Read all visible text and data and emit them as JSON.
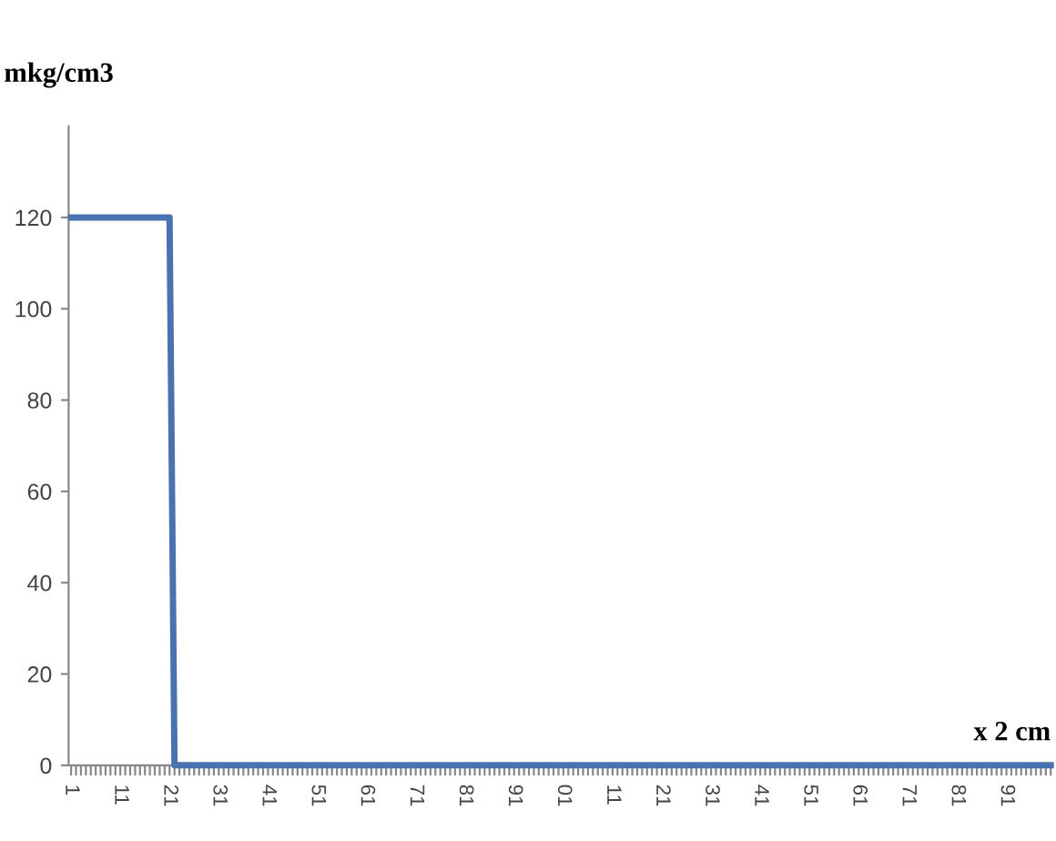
{
  "chart_data": {
    "type": "line",
    "ylabel": "mkg/cm3",
    "xlabel": "x 2 cm",
    "categories": [
      "1",
      null,
      null,
      null,
      null,
      null,
      null,
      null,
      null,
      null,
      "11",
      null,
      null,
      null,
      null,
      null,
      null,
      null,
      null,
      null,
      "21",
      null,
      null,
      null,
      null,
      null,
      null,
      null,
      null,
      null,
      "31",
      null,
      null,
      null,
      null,
      null,
      null,
      null,
      null,
      null,
      "41",
      null,
      null,
      null,
      null,
      null,
      null,
      null,
      null,
      null,
      "51",
      null,
      null,
      null,
      null,
      null,
      null,
      null,
      null,
      null,
      "61",
      null,
      null,
      null,
      null,
      null,
      null,
      null,
      null,
      null,
      "71",
      null,
      null,
      null,
      null,
      null,
      null,
      null,
      null,
      null,
      "81",
      null,
      null,
      null,
      null,
      null,
      null,
      null,
      null,
      null,
      "91",
      null,
      null,
      null,
      null,
      null,
      null,
      null,
      null,
      null,
      "01",
      null,
      null,
      null,
      null,
      null,
      null,
      null,
      null,
      null,
      "11",
      null,
      null,
      null,
      null,
      null,
      null,
      null,
      null,
      null,
      "21",
      null,
      null,
      null,
      null,
      null,
      null,
      null,
      null,
      null,
      "31",
      null,
      null,
      null,
      null,
      null,
      null,
      null,
      null,
      null,
      "41",
      null,
      null,
      null,
      null,
      null,
      null,
      null,
      null,
      null,
      "51",
      null,
      null,
      null,
      null,
      null,
      null,
      null,
      null,
      null,
      "61",
      null,
      null,
      null,
      null,
      null,
      null,
      null,
      null,
      null,
      "71",
      null,
      null,
      null,
      null,
      null,
      null,
      null,
      null,
      null,
      "81",
      null,
      null,
      null,
      null,
      null,
      null,
      null,
      null,
      null,
      "91",
      null,
      null,
      null,
      null,
      null,
      null,
      null,
      null,
      null
    ],
    "series": [
      {
        "color": "#4a72b0",
        "values": [
          120,
          120,
          120,
          120,
          120,
          120,
          120,
          120,
          120,
          120,
          120,
          120,
          120,
          120,
          120,
          120,
          120,
          120,
          120,
          120,
          120,
          0,
          0,
          0,
          0,
          0,
          0,
          0,
          0,
          0,
          0,
          0,
          0,
          0,
          0,
          0,
          0,
          0,
          0,
          0,
          0,
          0,
          0,
          0,
          0,
          0,
          0,
          0,
          0,
          0,
          0,
          0,
          0,
          0,
          0,
          0,
          0,
          0,
          0,
          0,
          0,
          0,
          0,
          0,
          0,
          0,
          0,
          0,
          0,
          0,
          0,
          0,
          0,
          0,
          0,
          0,
          0,
          0,
          0,
          0,
          0,
          0,
          0,
          0,
          0,
          0,
          0,
          0,
          0,
          0,
          0,
          0,
          0,
          0,
          0,
          0,
          0,
          0,
          0,
          0,
          0,
          0,
          0,
          0,
          0,
          0,
          0,
          0,
          0,
          0,
          0,
          0,
          0,
          0,
          0,
          0,
          0,
          0,
          0,
          0,
          0,
          0,
          0,
          0,
          0,
          0,
          0,
          0,
          0,
          0,
          0,
          0,
          0,
          0,
          0,
          0,
          0,
          0,
          0,
          0,
          0,
          0,
          0,
          0,
          0,
          0,
          0,
          0,
          0,
          0,
          0,
          0,
          0,
          0,
          0,
          0,
          0,
          0,
          0,
          0,
          0,
          0,
          0,
          0,
          0,
          0,
          0,
          0,
          0,
          0,
          0,
          0,
          0,
          0,
          0,
          0,
          0,
          0,
          0,
          0,
          0,
          0,
          0,
          0,
          0,
          0,
          0,
          0,
          0,
          0,
          0,
          0,
          0,
          0,
          0,
          0,
          0,
          0,
          0,
          0
        ]
      }
    ],
    "ylim": [
      0,
      140
    ],
    "yticks": [
      0,
      20,
      40,
      60,
      80,
      100,
      120
    ],
    "grid": false,
    "legend": false,
    "marker": "none",
    "line_style": "solid"
  }
}
